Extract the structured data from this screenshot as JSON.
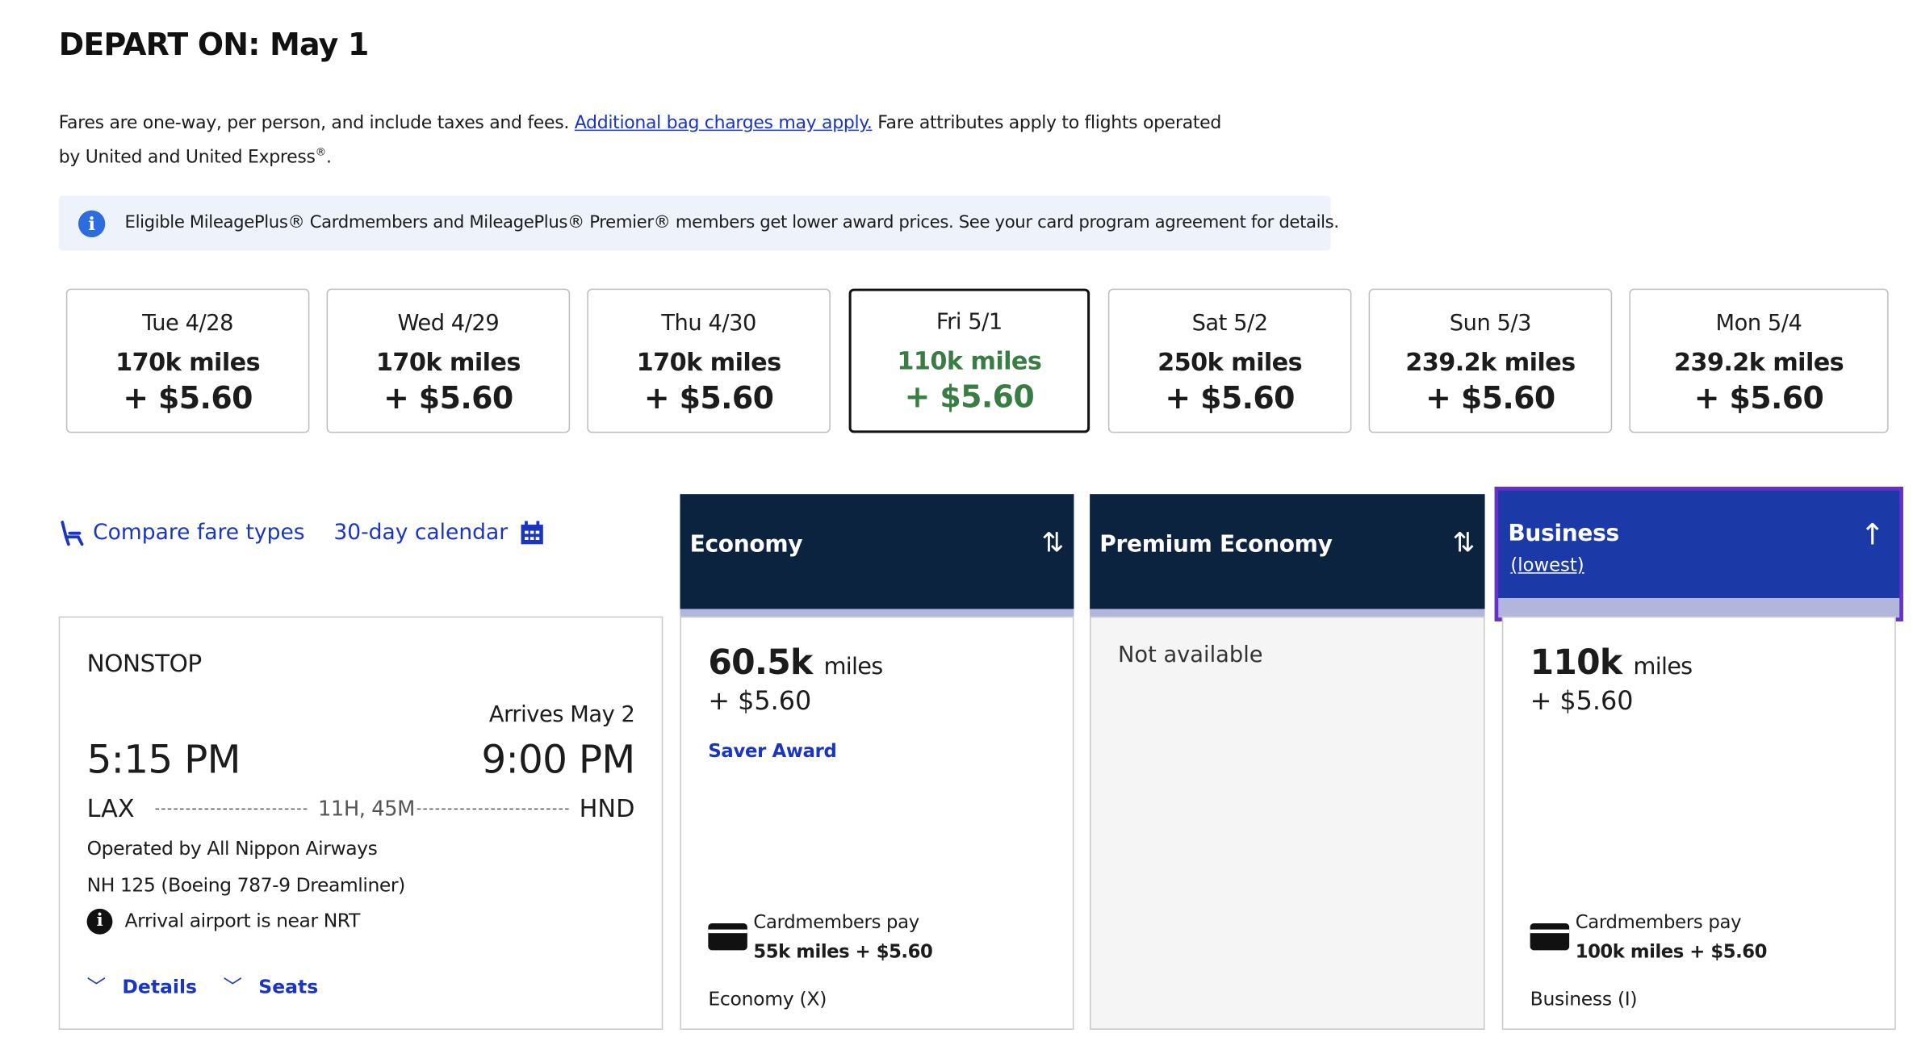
{
  "page_title": "DEPART ON: May 1",
  "disclaimer": {
    "text1": "Fares are one-way, per person, and include taxes and fees. ",
    "link": "Additional bag charges may apply.",
    "text2": " Fare attributes apply to flights operated by United and United Express",
    "reg": "®",
    "end": "."
  },
  "notice": {
    "icon": "info-icon",
    "text": "Eligible MileagePlus® Cardmembers and MileagePlus® Premier® members get lower award prices. See your card program agreement for details."
  },
  "dates": [
    {
      "date": "Tue 4/28",
      "miles": "170k miles",
      "price": "+ $5.60",
      "selected": false
    },
    {
      "date": "Wed 4/29",
      "miles": "170k miles",
      "price": "+ $5.60",
      "selected": false
    },
    {
      "date": "Thu 4/30",
      "miles": "170k miles",
      "price": "+ $5.60",
      "selected": false
    },
    {
      "date": "Fri 5/1",
      "miles": "110k miles",
      "price": "+ $5.60",
      "selected": true
    },
    {
      "date": "Sat 5/2",
      "miles": "250k miles",
      "price": "+ $5.60",
      "selected": false
    },
    {
      "date": "Sun 5/3",
      "miles": "239.2k miles",
      "price": "+ $5.60",
      "selected": false
    },
    {
      "date": "Mon 5/4",
      "miles": "239.2k miles",
      "price": "+ $5.60",
      "selected": false
    }
  ],
  "links": {
    "compare": "Compare fare types",
    "calendar": "30-day calendar"
  },
  "fare_columns": [
    {
      "label": "Economy",
      "sub": "",
      "sort_icon": "sort-arrows-icon"
    },
    {
      "label": "Premium Economy",
      "sub": "",
      "sort_icon": "sort-arrows-icon"
    },
    {
      "label": "Business",
      "sub": "(lowest)",
      "sort_icon": "arrow-up-icon"
    }
  ],
  "flight": {
    "type": "NONSTOP",
    "arrives": "Arrives May 2",
    "depart_time": "5:15 PM",
    "arrive_time": "9:00 PM",
    "origin": "LAX",
    "destination": "HND",
    "duration": "11H, 45M",
    "operated_by": "Operated by All Nippon Airways",
    "equipment": "NH 125 (Boeing 787-9 Dreamliner)",
    "note": "Arrival airport is near NRT",
    "details": "Details",
    "seats": "Seats"
  },
  "fares": {
    "economy": {
      "miles": "60.5k",
      "unit": "miles",
      "tax": "+ $5.60",
      "award": "Saver Award",
      "cm_label": "Cardmembers pay",
      "cm_price": "55k miles + $5.60",
      "fare_class": "Economy (X)"
    },
    "premium": {
      "message": "Not available"
    },
    "business": {
      "miles": "110k",
      "unit": "miles",
      "tax": "+ $5.60",
      "cm_label": "Cardmembers pay",
      "cm_price": "100k miles + $5.60",
      "fare_class": "Business (I)"
    }
  },
  "colors": {
    "brand_navy": "#0c2340",
    "selected_blue": "#1b3aa8",
    "selected_outline": "#6b2fc9",
    "link_blue": "#1a35c2",
    "selected_price_green": "#3a7d44"
  }
}
